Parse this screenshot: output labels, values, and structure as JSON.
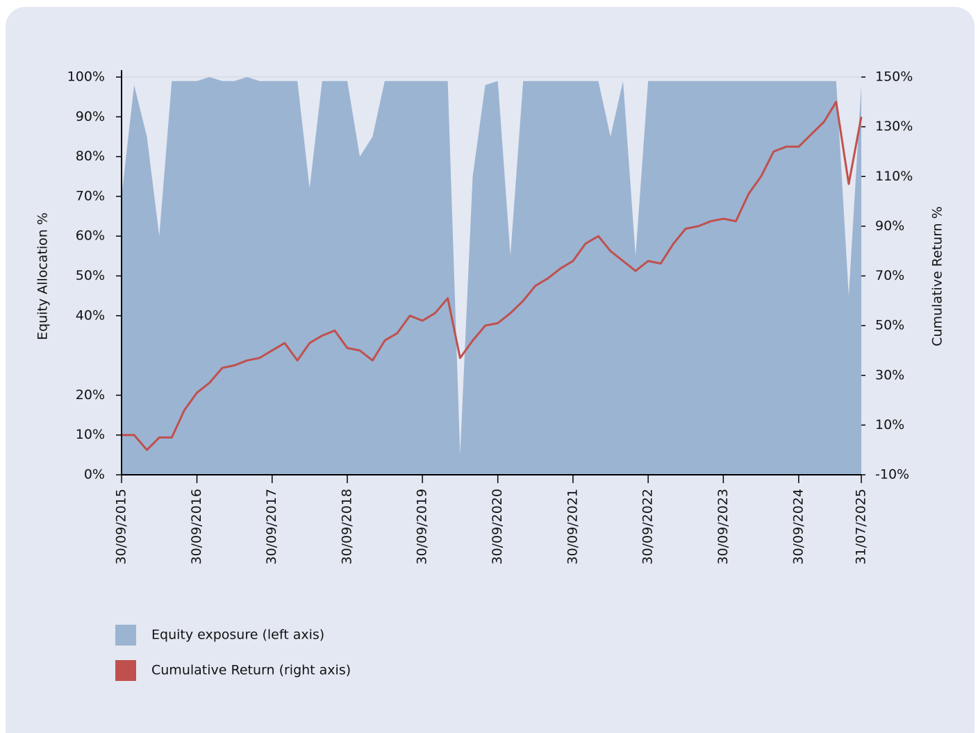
{
  "chart_data": {
    "type": "combo",
    "y_label": "Equity Allocation %",
    "y2_label": "Cumulative Return %",
    "x": [
      "30/09/2015",
      "30/11/2015",
      "31/01/2016",
      "31/03/2016",
      "31/05/2016",
      "31/07/2016",
      "30/09/2016",
      "30/11/2016",
      "31/01/2017",
      "31/03/2017",
      "31/05/2017",
      "31/07/2017",
      "30/09/2017",
      "30/11/2017",
      "31/01/2018",
      "31/03/2018",
      "31/05/2018",
      "31/07/2018",
      "30/09/2018",
      "30/11/2018",
      "31/01/2019",
      "31/03/2019",
      "31/05/2019",
      "31/07/2019",
      "30/09/2019",
      "30/11/2019",
      "31/01/2020",
      "31/03/2020",
      "31/05/2020",
      "31/07/2020",
      "30/09/2020",
      "30/11/2020",
      "31/01/2021",
      "31/03/2021",
      "31/05/2021",
      "31/07/2021",
      "30/09/2021",
      "30/11/2021",
      "31/01/2022",
      "31/03/2022",
      "31/05/2022",
      "31/07/2022",
      "30/09/2022",
      "30/11/2022",
      "31/01/2023",
      "31/03/2023",
      "31/05/2023",
      "31/07/2023",
      "30/09/2023",
      "30/11/2023",
      "31/01/2024",
      "31/03/2024",
      "31/05/2024",
      "31/07/2024",
      "30/09/2024",
      "30/11/2024",
      "31/01/2025",
      "31/03/2025",
      "31/05/2025",
      "31/07/2025"
    ],
    "series": [
      {
        "name": "Equity exposure (left axis)",
        "type": "area",
        "axis": "y",
        "color": "#9bb4d2",
        "values": [
          70,
          98,
          85,
          60,
          99,
          99,
          99,
          100,
          99,
          99,
          100,
          99,
          99,
          99,
          99,
          72,
          99,
          99,
          99,
          80,
          85,
          99,
          99,
          99,
          99,
          99,
          99,
          5,
          75,
          98,
          99,
          55,
          99,
          99,
          99,
          99,
          99,
          99,
          99,
          85,
          99,
          55,
          99,
          99,
          99,
          99,
          99,
          99,
          99,
          99,
          99,
          99,
          99,
          99,
          99,
          99,
          99,
          99,
          45,
          98
        ]
      },
      {
        "name": "Cumulative Return (right axis)",
        "type": "line",
        "axis": "y2",
        "color": "#c0504d",
        "values": [
          6,
          6,
          0,
          5,
          5,
          16,
          23,
          27,
          33,
          34,
          36,
          37,
          40,
          43,
          36,
          43,
          46,
          48,
          41,
          40,
          36,
          44,
          47,
          54,
          52,
          55,
          61,
          37,
          44,
          50,
          51,
          55,
          60,
          66,
          69,
          73,
          76,
          83,
          86,
          80,
          76,
          72,
          76,
          75,
          83,
          89,
          90,
          92,
          93,
          92,
          103,
          110,
          120,
          122,
          122,
          127,
          132,
          140,
          107,
          134
        ]
      }
    ],
    "xlim": [
      "30/09/2015",
      "31/07/2025"
    ],
    "xticks": [
      "30/09/2015",
      "30/09/2016",
      "30/09/2017",
      "30/09/2018",
      "30/09/2019",
      "30/09/2020",
      "30/09/2021",
      "30/09/2022",
      "30/09/2023",
      "30/09/2024",
      "31/07/2025"
    ],
    "ylim": [
      0,
      100
    ],
    "yticks": [
      {
        "value": 0,
        "label": "0%"
      },
      {
        "value": 10,
        "label": "10%"
      },
      {
        "value": 20,
        "label": "20%"
      },
      {
        "value": 40,
        "label": "40%"
      },
      {
        "value": 50,
        "label": "50%"
      },
      {
        "value": 60,
        "label": "60%"
      },
      {
        "value": 70,
        "label": "70%"
      },
      {
        "value": 80,
        "label": "80%"
      },
      {
        "value": 90,
        "label": "90%"
      },
      {
        "value": 100,
        "label": "100%"
      }
    ],
    "y2lim": [
      -10,
      150
    ],
    "y2ticks": [
      {
        "value": -10,
        "label": "-10%"
      },
      {
        "value": 10,
        "label": "10%"
      },
      {
        "value": 30,
        "label": "30%"
      },
      {
        "value": 50,
        "label": "50%"
      },
      {
        "value": 70,
        "label": "70%"
      },
      {
        "value": 90,
        "label": "90%"
      },
      {
        "value": 110,
        "label": "110%"
      },
      {
        "value": 130,
        "label": "130%"
      },
      {
        "value": 150,
        "label": "150%"
      }
    ],
    "grid": false,
    "legend": "bottom-left"
  }
}
